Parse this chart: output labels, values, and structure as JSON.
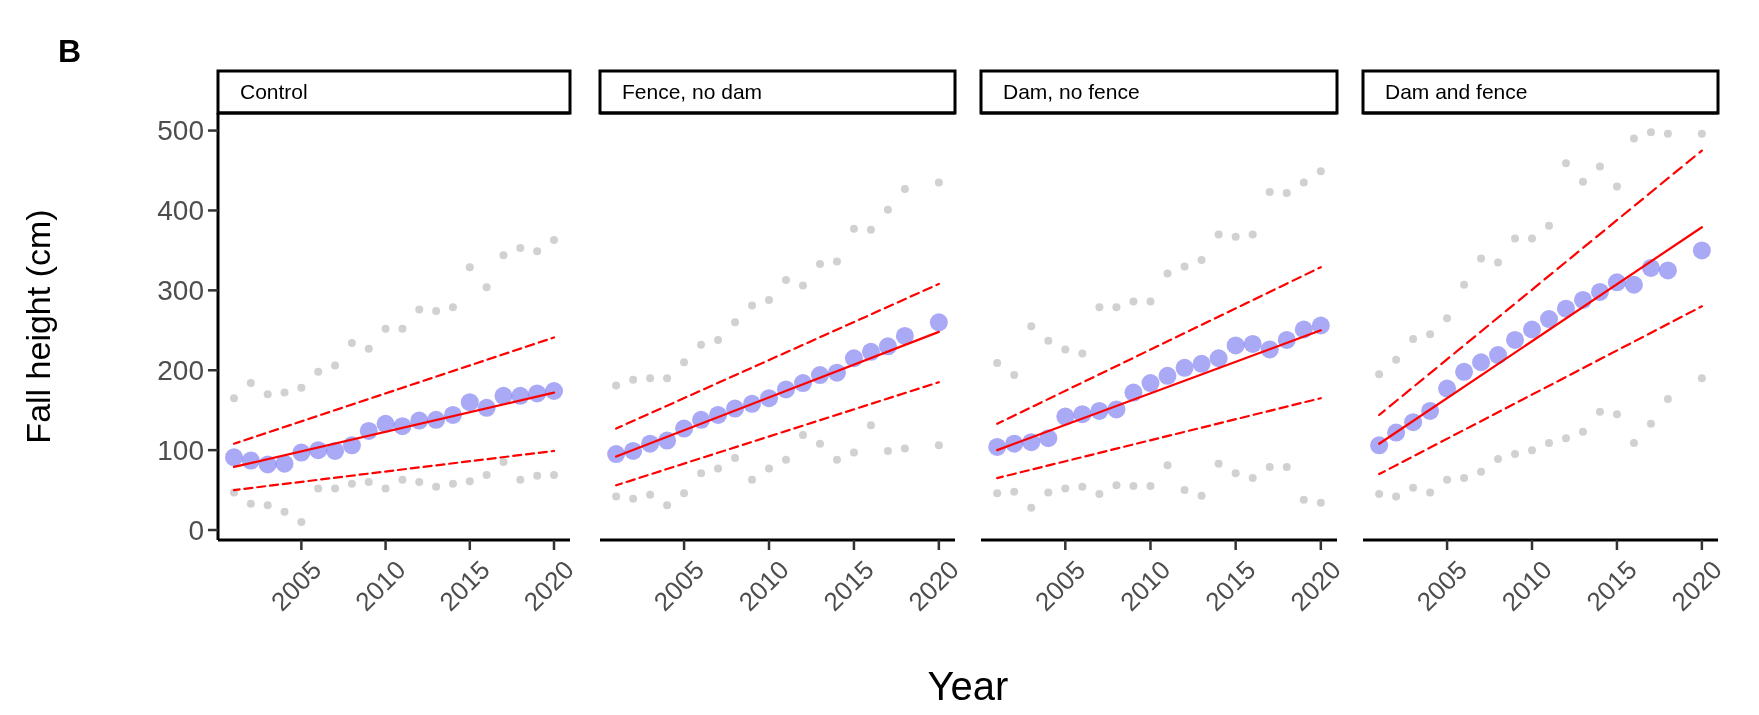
{
  "chart_data": [
    {
      "type": "scatter",
      "title": "Control",
      "ylabel": "Fall height (cm)",
      "annotations": [
        "B"
      ],
      "xlim": [
        2000.05,
        2020.95
      ],
      "ylim": [
        -12.5,
        522
      ],
      "xticks": [
        2005,
        2010,
        2015,
        2020
      ],
      "yticks": [
        0,
        100,
        200,
        300,
        400,
        500
      ],
      "series": [
        {
          "marker": "circle",
          "color": "#9a9a9a",
          "x": [
            2001,
            2001,
            2002,
            2002,
            2003,
            2003,
            2004,
            2004,
            2005,
            2005,
            2006,
            2006,
            2007,
            2007,
            2008,
            2008,
            2009,
            2009,
            2010,
            2010,
            2011,
            2011,
            2012,
            2012,
            2013,
            2013,
            2014,
            2014,
            2015,
            2015,
            2016,
            2016,
            2017,
            2017,
            2018,
            2018,
            2019,
            2019,
            2020,
            2020
          ],
          "values": [
            165,
            47,
            184,
            33,
            170,
            31,
            172,
            23,
            178,
            10,
            198,
            52,
            206,
            52,
            234,
            58,
            227,
            60,
            252,
            52,
            252,
            63,
            276,
            60,
            274,
            54,
            279,
            58,
            329,
            61,
            304,
            69,
            344,
            85,
            353,
            63,
            349,
            68,
            363,
            69
          ]
        },
        {
          "marker": "circle",
          "color": "#7070f0",
          "x": [
            2001,
            2002,
            2003,
            2004,
            2005,
            2006,
            2007,
            2008,
            2009,
            2010,
            2011,
            2012,
            2013,
            2014,
            2015,
            2016,
            2017,
            2018,
            2019,
            2020
          ],
          "values": [
            91,
            87,
            82,
            83,
            97,
            100,
            99,
            106,
            124,
            133,
            130,
            137,
            138,
            144,
            160,
            153,
            168,
            168,
            171,
            174
          ]
        },
        {
          "type": "line",
          "color": "#ff0000",
          "line_style": "solid",
          "x": [
            2001,
            2020
          ],
          "values": [
            79,
            172
          ]
        },
        {
          "type": "line",
          "color": "#ff0000",
          "line_style": "dashed",
          "x": [
            2001,
            2020
          ],
          "values": [
            108,
            241
          ]
        },
        {
          "type": "line",
          "color": "#ff0000",
          "line_style": "dashed",
          "x": [
            2001,
            2020
          ],
          "values": [
            50,
            99
          ]
        }
      ]
    },
    {
      "type": "scatter",
      "title": "Fence, no dam",
      "xlim": [
        2000.05,
        2020.95
      ],
      "ylim": [
        -12.5,
        522
      ],
      "xticks": [
        2005,
        2010,
        2015,
        2020
      ],
      "tick_labels": "x",
      "series": [
        {
          "marker": "circle",
          "color": "#9a9a9a",
          "x": [
            2001,
            2001,
            2002,
            2002,
            2003,
            2003,
            2004,
            2004,
            2005,
            2005,
            2006,
            2006,
            2007,
            2007,
            2008,
            2008,
            2009,
            2009,
            2010,
            2010,
            2011,
            2011,
            2012,
            2012,
            2013,
            2013,
            2014,
            2014,
            2015,
            2015,
            2016,
            2016,
            2017,
            2017,
            2018,
            2018,
            2020,
            2020
          ],
          "values": [
            181,
            42,
            188,
            39,
            190,
            44,
            190,
            31,
            210,
            46,
            232,
            71,
            238,
            77,
            260,
            90,
            281,
            63,
            288,
            77,
            313,
            88,
            306,
            119,
            333,
            108,
            336,
            88,
            377,
            97,
            376,
            131,
            401,
            99,
            427,
            102,
            435,
            106
          ]
        },
        {
          "marker": "circle",
          "color": "#7070f0",
          "x": [
            2001,
            2002,
            2003,
            2004,
            2005,
            2006,
            2007,
            2008,
            2009,
            2010,
            2011,
            2012,
            2013,
            2014,
            2015,
            2016,
            2017,
            2018,
            2020
          ],
          "values": [
            95,
            99,
            108,
            112,
            127,
            138,
            144,
            152,
            158,
            165,
            176,
            184,
            194,
            197,
            215,
            223,
            230,
            243,
            260
          ]
        },
        {
          "type": "line",
          "color": "#ff0000",
          "line_style": "solid",
          "x": [
            2001,
            2020
          ],
          "values": [
            92,
            248
          ]
        },
        {
          "type": "line",
          "color": "#ff0000",
          "line_style": "dashed",
          "x": [
            2001,
            2020
          ],
          "values": [
            127,
            308
          ]
        },
        {
          "type": "line",
          "color": "#ff0000",
          "line_style": "dashed",
          "x": [
            2001,
            2020
          ],
          "values": [
            56,
            185
          ]
        }
      ]
    },
    {
      "type": "scatter",
      "title": "Dam, no fence",
      "xlabel": "Year",
      "xlim": [
        2000.05,
        2020.95
      ],
      "ylim": [
        -12.5,
        522
      ],
      "xticks": [
        2005,
        2010,
        2015,
        2020
      ],
      "tick_labels": "x",
      "series": [
        {
          "marker": "circle",
          "color": "#9a9a9a",
          "x": [
            2001,
            2001,
            2002,
            2002,
            2003,
            2003,
            2004,
            2004,
            2005,
            2005,
            2006,
            2006,
            2007,
            2007,
            2008,
            2008,
            2009,
            2009,
            2010,
            2010,
            2011,
            2011,
            2012,
            2012,
            2013,
            2013,
            2014,
            2014,
            2015,
            2015,
            2016,
            2016,
            2017,
            2017,
            2018,
            2018,
            2019,
            2019,
            2020,
            2020
          ],
          "values": [
            209,
            46,
            194,
            48,
            255,
            28,
            237,
            47,
            226,
            52,
            221,
            54,
            279,
            45,
            279,
            56,
            286,
            55,
            286,
            55,
            321,
            81,
            330,
            50,
            338,
            43,
            370,
            83,
            367,
            71,
            370,
            65,
            423,
            79,
            422,
            79,
            435,
            38,
            449,
            34
          ]
        },
        {
          "marker": "circle",
          "color": "#7070f0",
          "x": [
            2001,
            2002,
            2003,
            2004,
            2005,
            2006,
            2007,
            2008,
            2009,
            2010,
            2011,
            2012,
            2013,
            2014,
            2015,
            2016,
            2017,
            2018,
            2019,
            2020
          ],
          "values": [
            104,
            108,
            110,
            115,
            142,
            145,
            149,
            151,
            172,
            184,
            193,
            203,
            208,
            215,
            231,
            233,
            226,
            238,
            251,
            256
          ]
        },
        {
          "type": "line",
          "color": "#ff0000",
          "line_style": "solid",
          "x": [
            2001,
            2020
          ],
          "values": [
            100,
            250
          ]
        },
        {
          "type": "line",
          "color": "#ff0000",
          "line_style": "dashed",
          "x": [
            2001,
            2020
          ],
          "values": [
            133,
            329
          ]
        },
        {
          "type": "line",
          "color": "#ff0000",
          "line_style": "dashed",
          "x": [
            2001,
            2020
          ],
          "values": [
            65,
            165
          ]
        }
      ]
    },
    {
      "type": "scatter",
      "title": "Dam and fence",
      "xlim": [
        2000.05,
        2020.95
      ],
      "ylim": [
        -12.5,
        522
      ],
      "xticks": [
        2005,
        2010,
        2015,
        2020
      ],
      "tick_labels": "x",
      "series": [
        {
          "marker": "circle",
          "color": "#9a9a9a",
          "x": [
            2001,
            2001,
            2002,
            2002,
            2003,
            2003,
            2004,
            2004,
            2005,
            2005,
            2006,
            2006,
            2007,
            2007,
            2008,
            2008,
            2009,
            2009,
            2010,
            2010,
            2011,
            2011,
            2012,
            2012,
            2013,
            2013,
            2014,
            2014,
            2015,
            2015,
            2016,
            2016,
            2017,
            2017,
            2018,
            2018,
            2020,
            2020
          ],
          "values": [
            195,
            45,
            213,
            42,
            239,
            53,
            245,
            47,
            265,
            63,
            307,
            65,
            340,
            73,
            335,
            89,
            365,
            95,
            365,
            100,
            381,
            109,
            459,
            115,
            436,
            123,
            455,
            148,
            430,
            145,
            490,
            109,
            498,
            133,
            496,
            164,
            496,
            190
          ]
        },
        {
          "marker": "circle",
          "color": "#7070f0",
          "x": [
            2001,
            2002,
            2003,
            2004,
            2005,
            2006,
            2007,
            2008,
            2009,
            2010,
            2011,
            2012,
            2013,
            2014,
            2015,
            2016,
            2017,
            2018,
            2020
          ],
          "values": [
            106,
            122,
            135,
            149,
            177,
            198,
            210,
            219,
            238,
            251,
            264,
            277,
            288,
            298,
            310,
            307,
            328,
            325,
            350
          ]
        },
        {
          "type": "line",
          "color": "#ff0000",
          "line_style": "solid",
          "x": [
            2001,
            2020
          ],
          "values": [
            108,
            379
          ]
        },
        {
          "type": "line",
          "color": "#ff0000",
          "line_style": "dashed",
          "x": [
            2001,
            2020
          ],
          "values": [
            144,
            475
          ]
        },
        {
          "type": "line",
          "color": "#ff0000",
          "line_style": "dashed",
          "x": [
            2001,
            2020
          ],
          "values": [
            70,
            280
          ]
        }
      ]
    }
  ]
}
